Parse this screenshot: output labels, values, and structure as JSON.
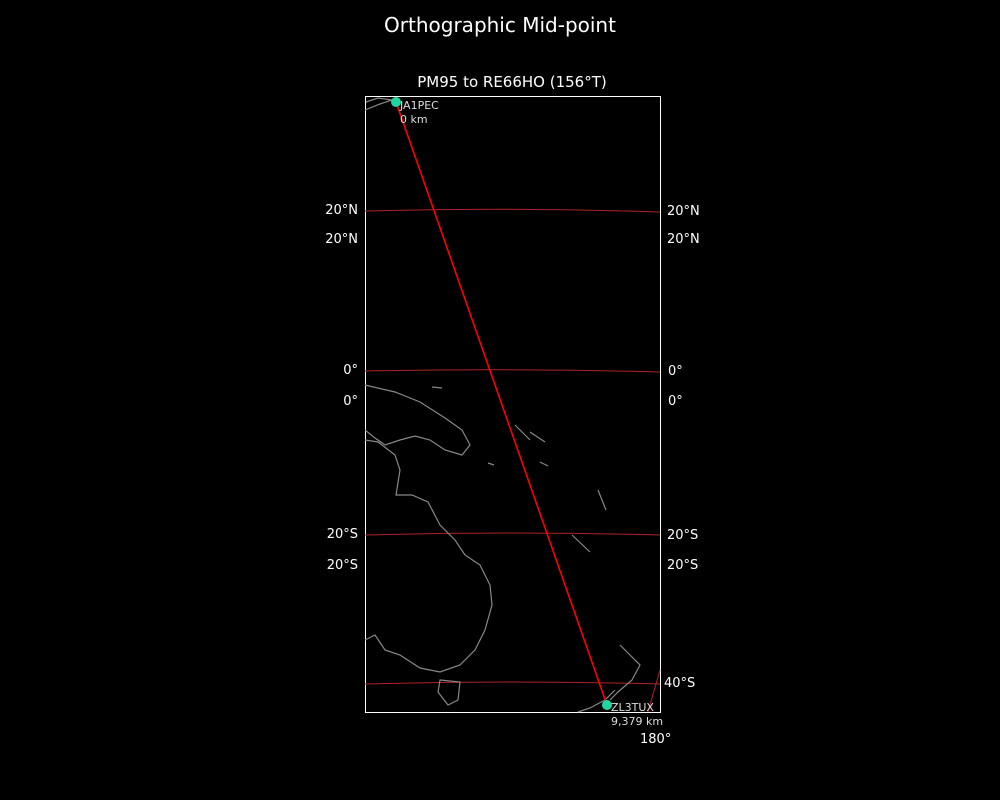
{
  "figure": {
    "title": "Orthographic Mid-point",
    "subtitle": "PM95 to RE66HO (156°T)"
  },
  "map": {
    "projection": "orthographic",
    "background": "#000000",
    "coastline_color": "#888888",
    "gridline_color": "#b22222",
    "path_color": "#ff0000",
    "marker_color": "#1fd6a0",
    "lat_labels_left": [
      "20°N",
      "20°N",
      "0°",
      "0°",
      "20°S",
      "20°S"
    ],
    "lat_labels_right": [
      "20°N",
      "20°N",
      "0°",
      "0°",
      "20°S",
      "20°S",
      "40°S"
    ],
    "lon_labels": [
      "180°"
    ],
    "start": {
      "call": "JA1PEC",
      "distance": "0 km",
      "grid": "PM95"
    },
    "end": {
      "call": "ZL3TUX",
      "distance": "9,379 km",
      "grid": "RE66HO"
    },
    "bearing": "156°T"
  }
}
